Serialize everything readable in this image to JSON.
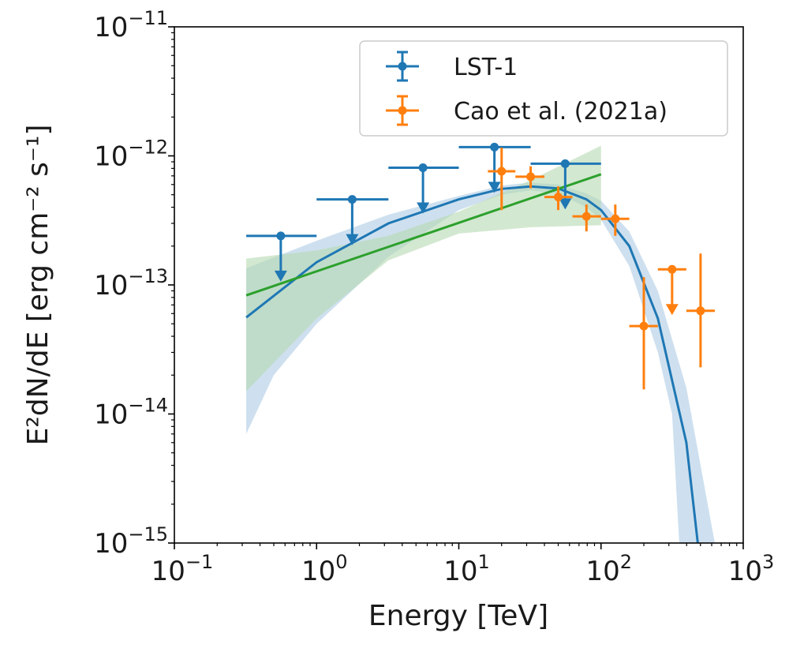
{
  "chart_data": {
    "type": "scatter",
    "xscale": "log",
    "yscale": "log",
    "xlim": [
      0.1,
      1000
    ],
    "ylim": [
      1e-15,
      1e-11
    ],
    "xlabel": "Energy [TeV]",
    "ylabel": "E²dN/dE [erg cm⁻² s⁻¹]",
    "x_ticks": [
      {
        "value": 0.1,
        "base": "10",
        "exp": "−1"
      },
      {
        "value": 1,
        "base": "10",
        "exp": "0"
      },
      {
        "value": 10,
        "base": "10",
        "exp": "1"
      },
      {
        "value": 100,
        "base": "10",
        "exp": "2"
      },
      {
        "value": 1000,
        "base": "10",
        "exp": "3"
      }
    ],
    "y_ticks": [
      {
        "value": 1e-11,
        "base": "10",
        "exp": "−11"
      },
      {
        "value": 1e-12,
        "base": "10",
        "exp": "−12"
      },
      {
        "value": 1e-13,
        "base": "10",
        "exp": "−13"
      },
      {
        "value": 1e-14,
        "base": "10",
        "exp": "−14"
      },
      {
        "value": 1e-15,
        "base": "10",
        "exp": "−15"
      }
    ],
    "legend": {
      "position": "top-right"
    },
    "series": [
      {
        "name": "LST-1",
        "color": "#1f77b4",
        "marker": "circle",
        "upper_limits": true,
        "points": [
          {
            "x": 0.56,
            "xlo": 0.32,
            "xhi": 1.0,
            "y": 2.4e-13
          },
          {
            "x": 1.78,
            "xlo": 1.0,
            "xhi": 3.2,
            "y": 4.6e-13
          },
          {
            "x": 5.6,
            "xlo": 3.2,
            "xhi": 10.0,
            "y": 8.1e-13
          },
          {
            "x": 17.8,
            "xlo": 10.0,
            "xhi": 32.0,
            "y": 1.17e-12
          },
          {
            "x": 56,
            "xlo": 32.0,
            "xhi": 100.0,
            "y": 8.7e-13
          }
        ]
      },
      {
        "name": "Cao et al. (2021a)",
        "color": "#ff7f0e",
        "marker": "circle",
        "points": [
          {
            "x": 20,
            "xlo": 16,
            "xhi": 25,
            "y": 7.6e-13,
            "ylo": 3.8e-13,
            "yhi": 1.16e-12
          },
          {
            "x": 32,
            "xlo": 25,
            "xhi": 40,
            "y": 6.9e-13,
            "ylo": 5.6e-13,
            "yhi": 8.3e-13
          },
          {
            "x": 50,
            "xlo": 40,
            "xhi": 63,
            "y": 4.8e-13,
            "ylo": 3.8e-13,
            "yhi": 5.8e-13
          },
          {
            "x": 79,
            "xlo": 63,
            "xhi": 100,
            "y": 3.4e-13,
            "ylo": 2.6e-13,
            "yhi": 4.2e-13
          },
          {
            "x": 126,
            "xlo": 100,
            "xhi": 158,
            "y": 3.25e-13,
            "ylo": 2.4e-13,
            "yhi": 4.2e-13
          },
          {
            "x": 200,
            "xlo": 158,
            "xhi": 251,
            "y": 4.8e-14,
            "ylo": 1.55e-14,
            "yhi": 1.15e-13
          },
          {
            "x": 316,
            "xlo": 251,
            "xhi": 398,
            "y": 1.32e-13,
            "upper_limit": true
          },
          {
            "x": 501,
            "xlo": 398,
            "xhi": 631,
            "y": 6.3e-14,
            "ylo": 2.3e-14,
            "yhi": 1.75e-13
          }
        ]
      }
    ],
    "models": [
      {
        "type": "log-parabola fit",
        "color": "#1f77b4",
        "band_color": "#aecbe4",
        "curve": [
          [
            0.32,
            5.6e-14
          ],
          [
            1,
            1.5e-13
          ],
          [
            3.2,
            3e-13
          ],
          [
            10,
            4.6e-13
          ],
          [
            20,
            5.55e-13
          ],
          [
            32,
            5.8e-13
          ],
          [
            50,
            5.6e-13
          ],
          [
            79,
            4.6e-13
          ],
          [
            100,
            3.8e-13
          ],
          [
            158,
            2e-13
          ],
          [
            251,
            5.5e-14
          ],
          [
            398,
            6e-15
          ],
          [
            479,
            1e-15
          ]
        ],
        "band_upper": [
          [
            0.32,
            1.35e-13
          ],
          [
            1,
            2.2e-13
          ],
          [
            3.2,
            3.5e-13
          ],
          [
            10,
            4.9e-13
          ],
          [
            20,
            5.9e-13
          ],
          [
            32,
            6.2e-13
          ],
          [
            50,
            6e-13
          ],
          [
            79,
            5.1e-13
          ],
          [
            100,
            4.5e-13
          ],
          [
            158,
            2.6e-13
          ],
          [
            251,
            9e-14
          ],
          [
            398,
            1.6e-14
          ],
          [
            631,
            1e-15
          ]
        ],
        "band_lower": [
          [
            0.32,
            7e-15
          ],
          [
            0.5,
            2e-14
          ],
          [
            1,
            5e-14
          ],
          [
            3.2,
            1.65e-13
          ],
          [
            10,
            3.8e-13
          ],
          [
            20,
            5e-13
          ],
          [
            32,
            5.4e-13
          ],
          [
            50,
            5.1e-13
          ],
          [
            79,
            4e-13
          ],
          [
            100,
            3.2e-13
          ],
          [
            158,
            1.4e-13
          ],
          [
            251,
            3e-14
          ],
          [
            316,
            1e-14
          ],
          [
            355,
            1e-15
          ]
        ]
      },
      {
        "type": "power-law fit",
        "color": "#2ca02c",
        "band_color": "#b5d9b0",
        "curve": [
          [
            0.32,
            8.3e-14
          ],
          [
            100,
            7.2e-13
          ]
        ],
        "band_upper": [
          [
            0.32,
            1.6e-13
          ],
          [
            1,
            1.85e-13
          ],
          [
            3.2,
            2.4e-13
          ],
          [
            10,
            3.7e-13
          ],
          [
            32,
            6.5e-13
          ],
          [
            100,
            1.2e-12
          ]
        ],
        "band_lower": [
          [
            0.32,
            1.5e-14
          ],
          [
            1,
            5.5e-14
          ],
          [
            3.2,
            1.55e-13
          ],
          [
            10,
            2.5e-13
          ],
          [
            32,
            2.8e-13
          ],
          [
            100,
            2.9e-13
          ]
        ]
      }
    ]
  }
}
